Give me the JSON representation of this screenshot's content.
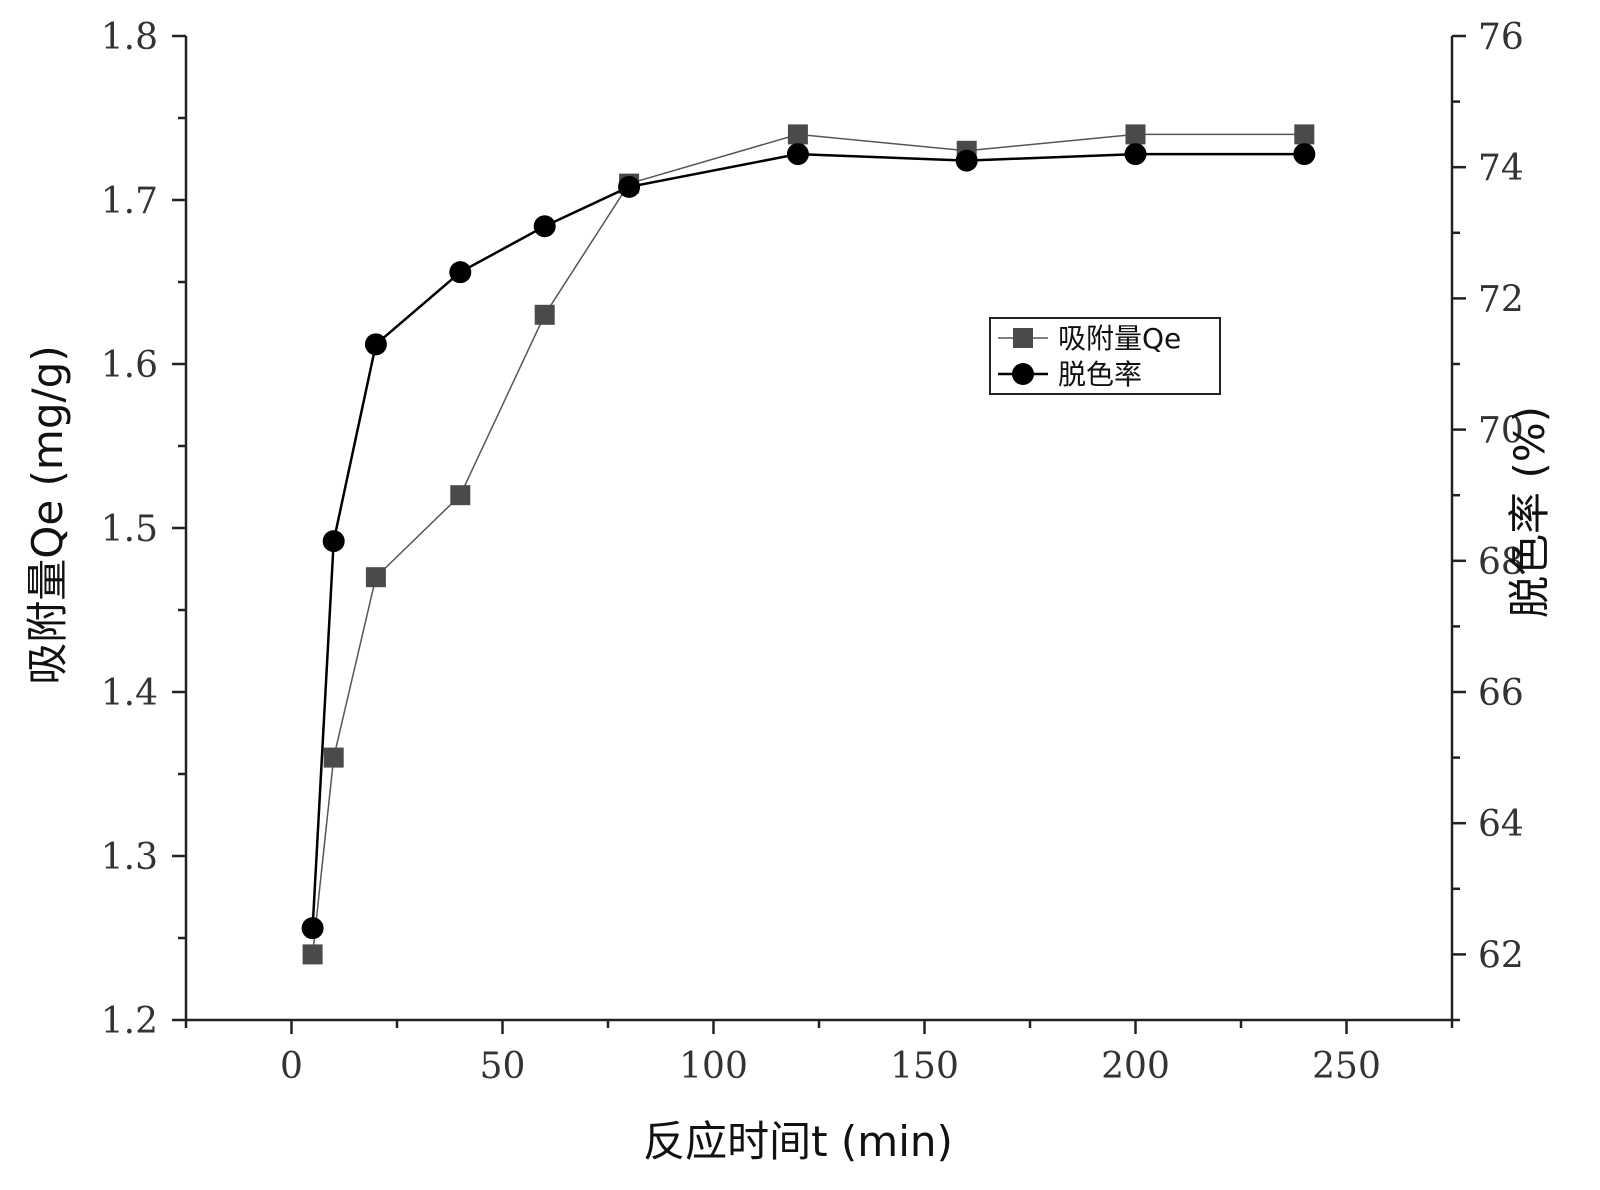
{
  "chart_data": {
    "type": "line",
    "xlabel": "反应时间t (min)",
    "ylabel_left": "吸附量Qe (mg/g)",
    "ylabel_right": "脱色率 (%)",
    "xlim": [
      -25,
      275
    ],
    "ylim_left": [
      1.2,
      1.8
    ],
    "ylim_right": [
      61,
      76
    ],
    "x_ticks": [
      0,
      50,
      100,
      150,
      200,
      250
    ],
    "y_left_ticks": [
      "1.2",
      "1.3",
      "1.4",
      "1.5",
      "1.6",
      "1.7",
      "1.8"
    ],
    "y_right_ticks": [
      "62",
      "64",
      "66",
      "68",
      "70",
      "72",
      "74",
      "76"
    ],
    "legend_position": "right-middle",
    "series": [
      {
        "name": "吸附量Qe",
        "axis": "left",
        "marker": "square",
        "color": "#4a4a4a",
        "x": [
          5,
          10,
          20,
          40,
          60,
          80,
          120,
          160,
          200,
          240
        ],
        "values": [
          1.24,
          1.36,
          1.47,
          1.52,
          1.63,
          1.71,
          1.74,
          1.73,
          1.74,
          1.74
        ]
      },
      {
        "name": "脱色率",
        "axis": "right",
        "marker": "circle",
        "color": "#000000",
        "x": [
          5,
          10,
          20,
          40,
          60,
          80,
          120,
          160,
          200,
          240
        ],
        "values": [
          62.4,
          68.3,
          71.3,
          72.4,
          73.1,
          73.7,
          74.2,
          74.1,
          74.2,
          74.2
        ]
      }
    ]
  }
}
